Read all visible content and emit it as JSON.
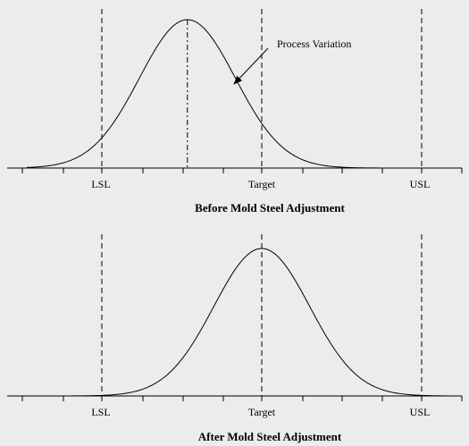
{
  "chart_data": [
    {
      "type": "line",
      "title": "Before Mold Steel Adjustment",
      "xlabel": "",
      "ylabel": "",
      "tick_labels": [
        "LSL",
        "Target",
        "USL"
      ],
      "marker_positions": {
        "LSL": -2,
        "Target": 0,
        "USL": 2
      },
      "distribution": {
        "mean": -0.93,
        "sd": 0.6
      },
      "mean_marker": true,
      "annotation": "Process Variation",
      "xlim": [
        -3,
        3
      ],
      "grid": false
    },
    {
      "type": "line",
      "title": "After Mold Steel Adjustment",
      "xlabel": "",
      "ylabel": "",
      "tick_labels": [
        "LSL",
        "Target",
        "USL"
      ],
      "marker_positions": {
        "LSL": -2,
        "Target": 0,
        "USL": 2
      },
      "distribution": {
        "mean": 0,
        "sd": 0.6
      },
      "mean_marker": false,
      "annotation": "",
      "xlim": [
        -3,
        3
      ],
      "grid": false
    }
  ]
}
